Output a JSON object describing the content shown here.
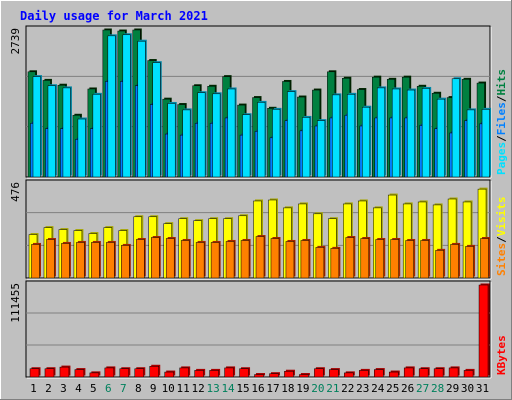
{
  "colors": {
    "background": "#C0C0C0",
    "title": "#0000FF",
    "hits": "#008040",
    "files": "#0080FF",
    "pages": "#00E0FF",
    "visits": "#FFFF00",
    "sites": "#FF8000",
    "kbytes": "#FF0000",
    "weekend_label": "#00805C",
    "weekday_label": "#000000"
  },
  "chart_data": {
    "type": "bar",
    "title": "Daily usage for March 2021",
    "categories": [
      "1",
      "2",
      "3",
      "4",
      "5",
      "6",
      "7",
      "8",
      "9",
      "10",
      "11",
      "12",
      "13",
      "14",
      "15",
      "16",
      "17",
      "18",
      "19",
      "20",
      "21",
      "22",
      "23",
      "24",
      "25",
      "26",
      "27",
      "28",
      "29",
      "30",
      "31"
    ],
    "weekend_days": [
      "6",
      "7",
      "13",
      "14",
      "20",
      "21",
      "27",
      "28"
    ],
    "panels": [
      {
        "id": "hits-files-pages",
        "ymax_label": "2739",
        "ymax": 2739,
        "right_legend": [
          "Pages",
          "/",
          "Files",
          "/",
          "Hits"
        ],
        "series": [
          {
            "name": "Hits",
            "color_key": "hits",
            "values": [
              1960,
              1800,
              1710,
              1150,
              1640,
              2739,
              2720,
              2739,
              2170,
              1450,
              1350,
              1700,
              1690,
              1870,
              1340,
              1480,
              1280,
              1780,
              1490,
              1620,
              1960,
              1840,
              1630,
              1860,
              1820,
              1860,
              1690,
              1560,
              1480,
              1820,
              1750
            ]
          },
          {
            "name": "Files",
            "color_key": "files",
            "values": [
              1000,
              900,
              900,
              700,
              900,
              1780,
              1780,
              1700,
              1350,
              800,
              780,
              1000,
              1000,
              1100,
              780,
              850,
              730,
              1050,
              860,
              950,
              1100,
              1150,
              950,
              1100,
              1100,
              1100,
              960,
              900,
              820,
              1050,
              990
            ]
          },
          {
            "name": "Pages",
            "color_key": "pages",
            "values": [
              1870,
              1700,
              1660,
              1080,
              1540,
              2630,
              2650,
              2530,
              2130,
              1370,
              1250,
              1570,
              1550,
              1640,
              1160,
              1390,
              1260,
              1590,
              1110,
              1050,
              1530,
              1540,
              1300,
              1660,
              1640,
              1620,
              1650,
              1450,
              1830,
              1250,
              1260
            ]
          }
        ]
      },
      {
        "id": "visits-sites",
        "ymax_label": "476",
        "ymax": 476,
        "right_legend": [
          "Sites",
          "/",
          "Visits"
        ],
        "series": [
          {
            "name": "Visits",
            "color_key": "visits",
            "values": [
              220,
              255,
              245,
              240,
              225,
              255,
              240,
              310,
              310,
              275,
              300,
              290,
              300,
              300,
              315,
              390,
              395,
              355,
              375,
              325,
              300,
              375,
              390,
              355,
              420,
              375,
              385,
              370,
              400,
              385,
              450
            ]
          },
          {
            "name": "Sites",
            "color_key": "sites",
            "values": [
              170,
              195,
              175,
              180,
              180,
              180,
              165,
              195,
              205,
              200,
              190,
              180,
              180,
              185,
              190,
              210,
              200,
              185,
              190,
              155,
              150,
              205,
              200,
              195,
              195,
              190,
              190,
              140,
              170,
              160,
              200
            ]
          }
        ]
      },
      {
        "id": "kbytes",
        "ymax_label": "111455",
        "ymax": 111455,
        "right_legend": [
          "KBytes"
        ],
        "series": [
          {
            "name": "KBytes",
            "color_key": "kbytes",
            "values": [
              10000,
              10000,
              12000,
              9000,
              5000,
              11000,
              10000,
              10000,
              13000,
              6000,
              11000,
              8000,
              8000,
              11000,
              10000,
              3000,
              4000,
              7000,
              3000,
              10000,
              9000,
              5000,
              8000,
              9000,
              6000,
              11000,
              10000,
              10000,
              11000,
              8000,
              111455
            ]
          }
        ]
      }
    ]
  }
}
